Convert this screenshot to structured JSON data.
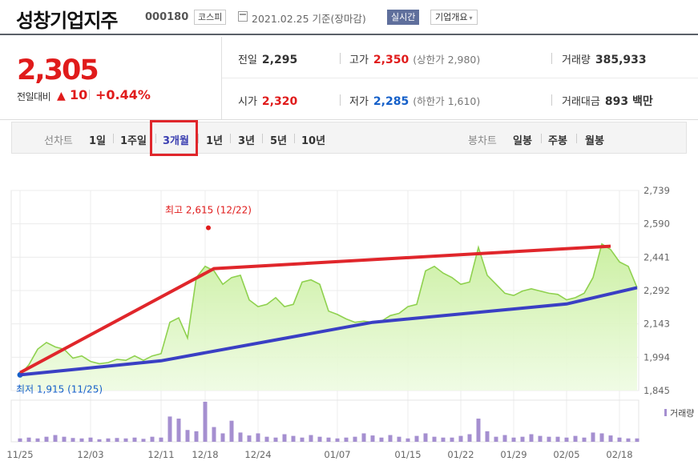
{
  "header": {
    "stock_name": "성창기업지주",
    "code": "000180",
    "market": "코스피",
    "date": "2021.02.25 기준(장마감)",
    "realtime": "실시간",
    "overview": "기업개요",
    "overview_caret": "▾"
  },
  "quote": {
    "price": "2,305",
    "change_label": "전일대비",
    "change_icon": "▲",
    "change": "10",
    "change_pct": "+0.44%",
    "prev_close": {
      "label": "전일",
      "value": "2,295"
    },
    "high": {
      "label": "고가",
      "value": "2,350",
      "limit_label": "(상한가 2,980)"
    },
    "volume": {
      "label": "거래량",
      "value": "385,933"
    },
    "open": {
      "label": "시가",
      "value": "2,320"
    },
    "low": {
      "label": "저가",
      "value": "2,285",
      "limit_label": "(하한가 1,610)"
    },
    "amount": {
      "label": "거래대금",
      "value": "893 백만"
    }
  },
  "tabs": {
    "line_label": "선차트",
    "line_periods": [
      "1일",
      "1주일",
      "3개월",
      "1년",
      "3년",
      "5년",
      "10년"
    ],
    "selected": "3개월",
    "candle_label": "봉차트",
    "candle_periods": [
      "일봉",
      "주봉",
      "월봉"
    ]
  },
  "colors": {
    "up": "#e01b1b",
    "down": "#1560c9",
    "area_line": "#8fd14f",
    "volume_bar": "#a58fd0",
    "annotation_red": "#e0262b",
    "annotation_blue": "#3a3fc4"
  },
  "chart_data": {
    "type": "area",
    "period": "3개월",
    "ylim": [
      1845,
      2739
    ],
    "yticks": [
      "2,739",
      "2,590",
      "2,441",
      "2,292",
      "2,143",
      "1,994",
      "1,845"
    ],
    "xticks": [
      "11/25",
      "12/03",
      "12/11",
      "12/18",
      "12/24",
      "01/07",
      "01/15",
      "01/22",
      "01/29",
      "02/05",
      "02/18"
    ],
    "high_label": "최고 2,615 (12/22)",
    "low_label": "최저 1,915 (11/25)",
    "high_value": 2615,
    "low_value": 1915,
    "volume_legend": "거래량",
    "price": [
      1915,
      1960,
      2030,
      2060,
      2040,
      2030,
      1990,
      2000,
      1975,
      1965,
      1970,
      1985,
      1980,
      2000,
      1980,
      2000,
      2010,
      2150,
      2170,
      2080,
      2350,
      2400,
      2380,
      2320,
      2350,
      2360,
      2250,
      2220,
      2230,
      2260,
      2220,
      2230,
      2330,
      2340,
      2320,
      2200,
      2185,
      2165,
      2150,
      2155,
      2150,
      2155,
      2180,
      2190,
      2220,
      2230,
      2380,
      2400,
      2370,
      2350,
      2320,
      2330,
      2485,
      2360,
      2320,
      2280,
      2270,
      2290,
      2300,
      2290,
      2280,
      2275,
      2250,
      2260,
      2280,
      2350,
      2500,
      2475,
      2420,
      2400,
      2305
    ],
    "volume": [
      8,
      10,
      8,
      12,
      16,
      12,
      9,
      8,
      10,
      6,
      8,
      9,
      8,
      10,
      7,
      12,
      10,
      60,
      55,
      28,
      25,
      95,
      35,
      20,
      50,
      22,
      15,
      20,
      12,
      10,
      18,
      14,
      10,
      16,
      12,
      10,
      8,
      10,
      12,
      20,
      15,
      10,
      16,
      12,
      8,
      14,
      20,
      12,
      10,
      10,
      14,
      18,
      55,
      25,
      12,
      16,
      10,
      12,
      18,
      14,
      12,
      12,
      10,
      14,
      10,
      22,
      20,
      15,
      10,
      8,
      8
    ]
  }
}
